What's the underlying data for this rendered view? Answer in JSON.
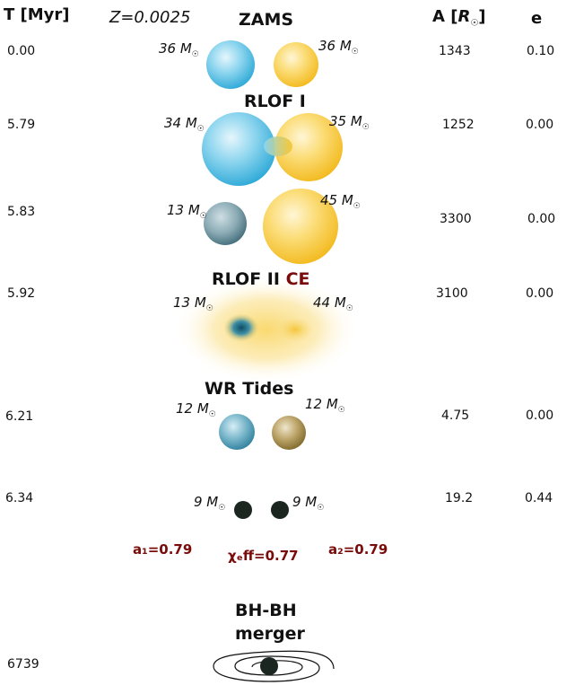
{
  "header": {
    "time_col": "T [Myr]",
    "metallicity": "Z=0.0025",
    "sep_col_prefix": "A [",
    "sep_col_unit": "R",
    "sep_col_suffix": "]",
    "ecc_col": "e"
  },
  "stages": [
    {
      "label": "ZAMS",
      "time": "0.00",
      "m1": "36 M",
      "m2": "36 M",
      "sep": "1343",
      "ecc": "0.10"
    },
    {
      "label": "RLOF I",
      "time": "5.79",
      "m1": "34 M",
      "m2": "35 M",
      "sep": "1252",
      "ecc": "0.00"
    },
    {
      "label": "",
      "time": "5.83",
      "m1": "13 M",
      "m2": "45 M",
      "sep": "3300",
      "ecc": "0.00"
    },
    {
      "label": "RLOF II",
      "label_extra": "CE",
      "time": "5.92",
      "m1": "13 M",
      "m2": "44 M",
      "sep": "3100",
      "ecc": "0.00"
    },
    {
      "label": "WR Tides",
      "time": "6.21",
      "m1": "12 M",
      "m2": "12 M",
      "sep": "4.75",
      "ecc": "0.00"
    },
    {
      "label": "",
      "time": "6.34",
      "m1": "9 M",
      "m2": "9 M",
      "sep": "19.2",
      "ecc": "0.44"
    }
  ],
  "spins": {
    "a1": "a₁=0.79",
    "chi_eff": "χₑff=0.77",
    "a2": "a₂=0.79"
  },
  "merger": {
    "line1": "BH-BH",
    "line2": "merger",
    "time": "6739"
  },
  "colors": {
    "blue_star": "#3fb6df",
    "yellow_star": "#f7c62a",
    "dark_red": "#7a0b0b",
    "black_hole": "#1c2620"
  }
}
